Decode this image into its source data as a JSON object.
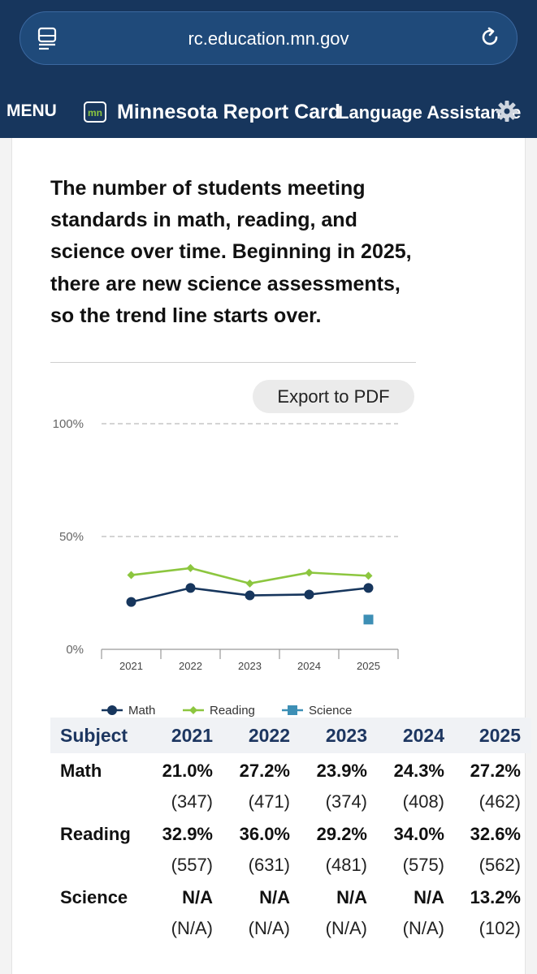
{
  "browser": {
    "url": "rc.education.mn.gov"
  },
  "header": {
    "menu_label": "MENU",
    "site_title": "Minnesota Report Card",
    "language_label": "Language Assistance"
  },
  "description": "The number of students meeting standards in math, reading, and science over time. Beginning in 2025, there are new science assessments, so the trend line starts over.",
  "export_label": "Export to PDF",
  "chart_data": {
    "type": "line",
    "categories": [
      "2021",
      "2022",
      "2023",
      "2024",
      "2025"
    ],
    "y_ticks": [
      "0%",
      "50%",
      "100%"
    ],
    "ylim": [
      0,
      100
    ],
    "grid": true,
    "legend_position": "bottom",
    "series": [
      {
        "name": "Math",
        "values": [
          21.0,
          27.2,
          23.9,
          24.3,
          27.2
        ],
        "color": "#17365d",
        "marker": "circle"
      },
      {
        "name": "Reading",
        "values": [
          32.9,
          36.0,
          29.2,
          34.0,
          32.6
        ],
        "color": "#8cc63f",
        "marker": "diamond"
      },
      {
        "name": "Science",
        "values": [
          null,
          null,
          null,
          null,
          13.2
        ],
        "color": "#3d8fb5",
        "marker": "square"
      }
    ]
  },
  "table": {
    "header": [
      "Subject",
      "2021",
      "2022",
      "2023",
      "2024",
      "2025"
    ],
    "rows": [
      {
        "label": "Math",
        "pct": [
          "21.0%",
          "27.2%",
          "23.9%",
          "24.3%",
          "27.2%"
        ],
        "n": [
          "(347)",
          "(471)",
          "(374)",
          "(408)",
          "(462)"
        ]
      },
      {
        "label": "Reading",
        "pct": [
          "32.9%",
          "36.0%",
          "29.2%",
          "34.0%",
          "32.6%"
        ],
        "n": [
          "(557)",
          "(631)",
          "(481)",
          "(575)",
          "(562)"
        ]
      },
      {
        "label": "Science",
        "pct": [
          "N/A",
          "N/A",
          "N/A",
          "N/A",
          "13.2%"
        ],
        "n": [
          "(N/A)",
          "(N/A)",
          "(N/A)",
          "(N/A)",
          "(102)"
        ]
      }
    ]
  }
}
